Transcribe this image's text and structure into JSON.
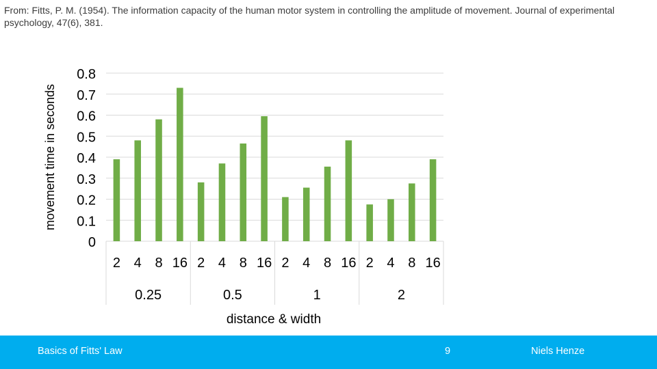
{
  "citation": "From: Fitts, P. M. (1954). The information capacity of the human motor system in controlling the amplitude of movement. Journal of experimental psychology, 47(6), 381.",
  "footer": {
    "left_text": "Basics of Fitts' Law",
    "page_number": "9",
    "author": "Niels Henze",
    "background_color": "#00adee"
  },
  "chart_data": {
    "type": "bar",
    "ylabel": "movement time in seconds",
    "xlabel": "distance & width",
    "ylim": [
      0,
      0.8
    ],
    "y_ticks": [
      "0",
      "0.1",
      "0.2",
      "0.3",
      "0.4",
      "0.5",
      "0.6",
      "0.7",
      "0.8"
    ],
    "grid": true,
    "bar_color": "#70ad47",
    "groups": [
      {
        "label": "0.25",
        "categories": [
          "2",
          "4",
          "8",
          "16"
        ],
        "values": [
          0.39,
          0.48,
          0.58,
          0.73
        ]
      },
      {
        "label": "0.5",
        "categories": [
          "2",
          "4",
          "8",
          "16"
        ],
        "values": [
          0.28,
          0.37,
          0.465,
          0.595
        ]
      },
      {
        "label": "1",
        "categories": [
          "2",
          "4",
          "8",
          "16"
        ],
        "values": [
          0.21,
          0.255,
          0.355,
          0.48
        ]
      },
      {
        "label": "2",
        "categories": [
          "2",
          "4",
          "8",
          "16"
        ],
        "values": [
          0.175,
          0.2,
          0.275,
          0.39
        ]
      }
    ]
  }
}
